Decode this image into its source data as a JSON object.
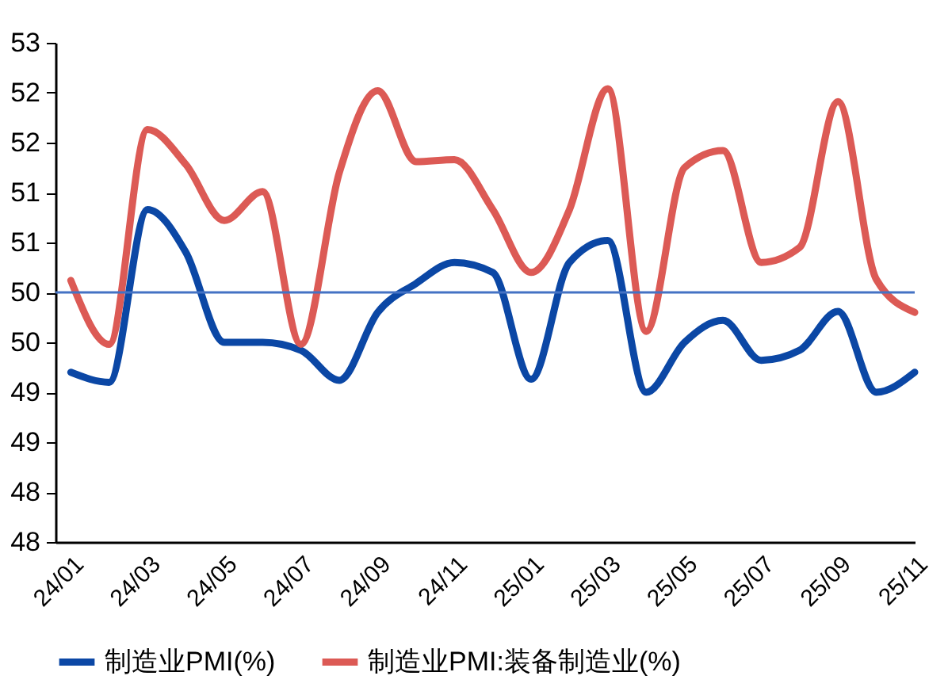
{
  "chart_data": {
    "type": "line",
    "categories": [
      "24/01",
      null,
      "24/03",
      null,
      "24/05",
      null,
      "24/07",
      null,
      "24/09",
      null,
      "24/11",
      null,
      "25/01",
      null,
      "25/03",
      null,
      "25/05",
      null,
      "25/07",
      null,
      "25/09",
      null,
      "25/11"
    ],
    "series": [
      {
        "name": "制造业PMI(%)",
        "color": "#0b47a5",
        "values": [
          49.7,
          49.6,
          51.33,
          50.9,
          50.0,
          50.0,
          49.92,
          49.62,
          50.3,
          50.59,
          50.8,
          50.7,
          49.63,
          50.8,
          51.02,
          49.5,
          50.0,
          50.22,
          49.82,
          49.92,
          50.31,
          49.5,
          49.7
        ]
      },
      {
        "name": "制造业PMI:装备制造业(%)",
        "color": "#dc5a55",
        "values": [
          50.62,
          49.98,
          52.13,
          51.78,
          51.22,
          51.51,
          49.98,
          51.7,
          52.52,
          51.81,
          51.83,
          51.33,
          50.7,
          51.33,
          52.54,
          50.11,
          51.75,
          51.92,
          50.8,
          50.95,
          52.41,
          50.63,
          50.3
        ]
      }
    ],
    "ylim": [
      48,
      53
    ],
    "yticks": [
      {
        "value": 48,
        "label": "48"
      },
      {
        "value": 48.5,
        "label": "48"
      },
      {
        "value": 49,
        "label": "49"
      },
      {
        "value": 49.5,
        "label": "49"
      },
      {
        "value": 50,
        "label": "50"
      },
      {
        "value": 50.5,
        "label": "50"
      },
      {
        "value": 51,
        "label": "51"
      },
      {
        "value": 51.5,
        "label": "51"
      },
      {
        "value": 52,
        "label": "52"
      },
      {
        "value": 52.5,
        "label": "52"
      },
      {
        "value": 53,
        "label": "53"
      }
    ],
    "ref_lines": [
      {
        "axis": "y",
        "value": 50.5,
        "color": "#4472c4"
      }
    ],
    "legend": "bottom",
    "grid": false
  }
}
